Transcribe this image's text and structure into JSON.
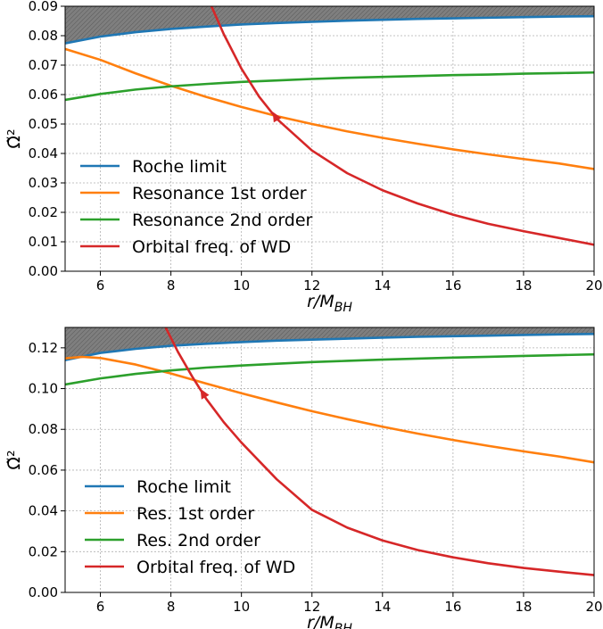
{
  "chart_data": [
    {
      "type": "line",
      "xlabel": "r/M",
      "xlabel_sub": "BH",
      "ylabel": "Ω̃²",
      "xlim": [
        5,
        20
      ],
      "ylim": [
        0,
        0.09
      ],
      "xticks": [
        6,
        8,
        10,
        12,
        14,
        16,
        18,
        20
      ],
      "yticks": [
        0.0,
        0.01,
        0.02,
        0.03,
        0.04,
        0.05,
        0.06,
        0.07,
        0.08,
        0.09
      ],
      "ytick_labels": [
        "0.00",
        "0.01",
        "0.02",
        "0.03",
        "0.04",
        "0.05",
        "0.06",
        "0.07",
        "0.08",
        "0.09"
      ],
      "grid": true,
      "legend_position": "lower-left",
      "shaded_region": "above Roche limit",
      "series": [
        {
          "name": "Roche limit",
          "color": "#1f77b4",
          "x": [
            5,
            6,
            7,
            8,
            9,
            10,
            11,
            12,
            13,
            14,
            15,
            16,
            17,
            18,
            19,
            20
          ],
          "y": [
            0.0774,
            0.0797,
            0.0812,
            0.0823,
            0.0831,
            0.0838,
            0.0843,
            0.0847,
            0.0851,
            0.0854,
            0.0857,
            0.0859,
            0.0861,
            0.0863,
            0.0865,
            0.0866
          ]
        },
        {
          "name": "Resonance 1st order",
          "color": "#ff7f0e",
          "x": [
            5,
            6,
            7,
            8,
            9,
            10,
            11,
            12,
            13,
            14,
            15,
            16,
            17,
            18,
            19,
            20
          ],
          "y": [
            0.0755,
            0.0718,
            0.0672,
            0.063,
            0.0592,
            0.0558,
            0.0527,
            0.05,
            0.0475,
            0.0453,
            0.0433,
            0.0414,
            0.0397,
            0.0381,
            0.0366,
            0.0347
          ]
        },
        {
          "name": "Resonance 2nd order",
          "color": "#2ca02c",
          "x": [
            5,
            6,
            7,
            8,
            9,
            10,
            11,
            12,
            13,
            14,
            15,
            16,
            17,
            18,
            19,
            20
          ],
          "y": [
            0.0582,
            0.0602,
            0.0617,
            0.0628,
            0.0636,
            0.0643,
            0.0648,
            0.0653,
            0.0657,
            0.066,
            0.0663,
            0.0666,
            0.0668,
            0.0671,
            0.0673,
            0.0675
          ]
        },
        {
          "name": "Orbital freq. of WD",
          "color": "#d62728",
          "x": [
            9.15,
            9.5,
            10,
            10.5,
            11,
            12,
            13,
            14,
            15,
            16,
            17,
            18,
            19,
            20
          ],
          "y": [
            0.09,
            0.0805,
            0.0688,
            0.0593,
            0.0518,
            0.041,
            0.0333,
            0.0275,
            0.023,
            0.0192,
            0.0161,
            0.0136,
            0.0113,
            0.009
          ]
        }
      ],
      "arrow_at": {
        "x": 11,
        "y": 0.0518
      }
    },
    {
      "type": "line",
      "xlabel": "r/M",
      "xlabel_sub": "BH",
      "ylabel": "Ω̃²",
      "xlim": [
        5,
        20
      ],
      "ylim": [
        0,
        0.13
      ],
      "xticks": [
        6,
        8,
        10,
        12,
        14,
        16,
        18,
        20
      ],
      "yticks": [
        0.0,
        0.02,
        0.04,
        0.06,
        0.08,
        0.1,
        0.12
      ],
      "ytick_labels": [
        "0.00",
        "0.02",
        "0.04",
        "0.06",
        "0.08",
        "0.10",
        "0.12"
      ],
      "grid": true,
      "legend_position": "lower-left",
      "shaded_region": "above Roche limit",
      "series": [
        {
          "name": "Roche limit",
          "color": "#1f77b4",
          "x": [
            5,
            6,
            7,
            8,
            9,
            10,
            11,
            12,
            13,
            14,
            15,
            16,
            17,
            18,
            19,
            20
          ],
          "y": [
            0.114,
            0.1175,
            0.1195,
            0.121,
            0.122,
            0.1228,
            0.1235,
            0.124,
            0.1245,
            0.125,
            0.1254,
            0.1257,
            0.126,
            0.1263,
            0.1266,
            0.1268
          ]
        },
        {
          "name": "Res. 1st order",
          "color": "#ff7f0e",
          "x": [
            5,
            5.5,
            6,
            7,
            8,
            9,
            10,
            11,
            12,
            13,
            14,
            15,
            16,
            17,
            18,
            19,
            20
          ],
          "y": [
            0.1148,
            0.1156,
            0.115,
            0.1118,
            0.1074,
            0.1025,
            0.0977,
            0.0932,
            0.0889,
            0.085,
            0.0813,
            0.0779,
            0.0748,
            0.0719,
            0.0692,
            0.0667,
            0.0638
          ]
        },
        {
          "name": "Res. 2nd order",
          "color": "#2ca02c",
          "x": [
            5,
            6,
            7,
            8,
            9,
            10,
            11,
            12,
            13,
            14,
            15,
            16,
            17,
            18,
            19,
            20
          ],
          "y": [
            0.102,
            0.105,
            0.1072,
            0.1089,
            0.1103,
            0.1113,
            0.1122,
            0.113,
            0.1136,
            0.1142,
            0.1147,
            0.1152,
            0.1156,
            0.116,
            0.1164,
            0.1168
          ]
        },
        {
          "name": "Orbital freq. of WD",
          "color": "#d62728",
          "x": [
            7.85,
            8.2,
            8.6,
            9,
            9.5,
            10,
            11,
            12,
            13,
            14,
            15,
            16,
            17,
            18,
            19,
            20
          ],
          "y": [
            0.13,
            0.118,
            0.106,
            0.095,
            0.0835,
            0.0735,
            0.0555,
            0.0405,
            0.0318,
            0.0255,
            0.0208,
            0.0172,
            0.0143,
            0.012,
            0.0102,
            0.0085
          ]
        }
      ],
      "arrow_at": {
        "x": 8.95,
        "y": 0.0965
      }
    }
  ]
}
